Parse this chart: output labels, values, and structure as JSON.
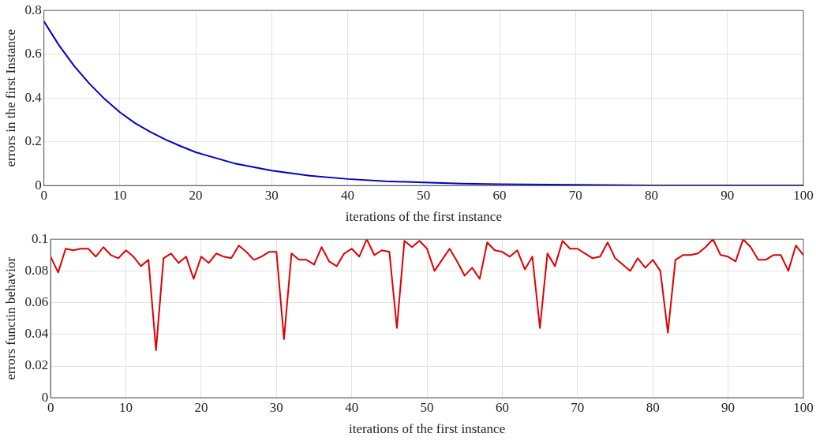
{
  "chart_data": [
    {
      "type": "line",
      "xlabel": "iterations of the first instance",
      "ylabel": "errors in the first Instance",
      "xlim": [
        0,
        100
      ],
      "xticks": [
        0,
        10,
        20,
        30,
        40,
        50,
        60,
        70,
        80,
        90,
        100
      ],
      "ylim": [
        0,
        0.8
      ],
      "yticks": [
        0,
        0.2,
        0.4,
        0.6,
        0.8
      ],
      "grid": true,
      "legend": false,
      "marker": "none",
      "line_style": "solid",
      "series": [
        {
          "color": "#0000cc",
          "x": [
            0,
            2,
            4,
            6,
            8,
            10,
            12,
            14,
            16,
            18,
            20,
            25,
            30,
            35,
            40,
            45,
            50,
            55,
            60,
            70,
            80,
            90,
            100
          ],
          "values": [
            0.75,
            0.64,
            0.545,
            0.465,
            0.395,
            0.335,
            0.285,
            0.245,
            0.21,
            0.18,
            0.152,
            0.102,
            0.068,
            0.045,
            0.03,
            0.02,
            0.014,
            0.009,
            0.006,
            0.003,
            0.001,
            0.001,
            0.001
          ]
        }
      ]
    },
    {
      "type": "line",
      "xlabel": "iterations of the first instance",
      "ylabel": "errors functin behavior",
      "xlim": [
        0,
        100
      ],
      "xticks": [
        0,
        10,
        20,
        30,
        40,
        50,
        60,
        70,
        80,
        90,
        100
      ],
      "ylim": [
        0,
        0.1
      ],
      "yticks": [
        0,
        0.02,
        0.04,
        0.06,
        0.08,
        0.1
      ],
      "grid": true,
      "legend": false,
      "marker": "none",
      "line_style": "solid",
      "series": [
        {
          "color": "#e00000",
          "x": [
            0,
            1,
            2,
            3,
            4,
            5,
            6,
            7,
            8,
            9,
            10,
            11,
            12,
            13,
            14,
            15,
            16,
            17,
            18,
            19,
            20,
            21,
            22,
            23,
            24,
            25,
            26,
            27,
            28,
            29,
            30,
            31,
            32,
            33,
            34,
            35,
            36,
            37,
            38,
            39,
            40,
            41,
            42,
            43,
            44,
            45,
            46,
            47,
            48,
            49,
            50,
            51,
            52,
            53,
            54,
            55,
            56,
            57,
            58,
            59,
            60,
            61,
            62,
            63,
            64,
            65,
            66,
            67,
            68,
            69,
            70,
            71,
            72,
            73,
            74,
            75,
            76,
            77,
            78,
            79,
            80,
            81,
            82,
            83,
            84,
            85,
            86,
            87,
            88,
            89,
            90,
            91,
            92,
            93,
            94,
            95,
            96,
            97,
            98,
            99,
            100
          ],
          "values": [
            0.089,
            0.079,
            0.094,
            0.093,
            0.094,
            0.094,
            0.089,
            0.095,
            0.09,
            0.088,
            0.093,
            0.089,
            0.083,
            0.087,
            0.03,
            0.088,
            0.091,
            0.085,
            0.089,
            0.075,
            0.089,
            0.085,
            0.091,
            0.089,
            0.088,
            0.096,
            0.092,
            0.087,
            0.089,
            0.092,
            0.092,
            0.037,
            0.091,
            0.087,
            0.087,
            0.084,
            0.095,
            0.086,
            0.083,
            0.091,
            0.094,
            0.089,
            0.1,
            0.09,
            0.093,
            0.092,
            0.044,
            0.099,
            0.095,
            0.099,
            0.094,
            0.08,
            0.087,
            0.094,
            0.086,
            0.077,
            0.082,
            0.075,
            0.098,
            0.093,
            0.092,
            0.089,
            0.093,
            0.081,
            0.089,
            0.044,
            0.091,
            0.083,
            0.099,
            0.094,
            0.094,
            0.091,
            0.088,
            0.089,
            0.098,
            0.088,
            0.084,
            0.08,
            0.088,
            0.082,
            0.087,
            0.08,
            0.041,
            0.087,
            0.09,
            0.09,
            0.091,
            0.095,
            0.1,
            0.09,
            0.089,
            0.086,
            0.1,
            0.095,
            0.087,
            0.087,
            0.09,
            0.09,
            0.08,
            0.096,
            0.09
          ]
        }
      ]
    }
  ]
}
